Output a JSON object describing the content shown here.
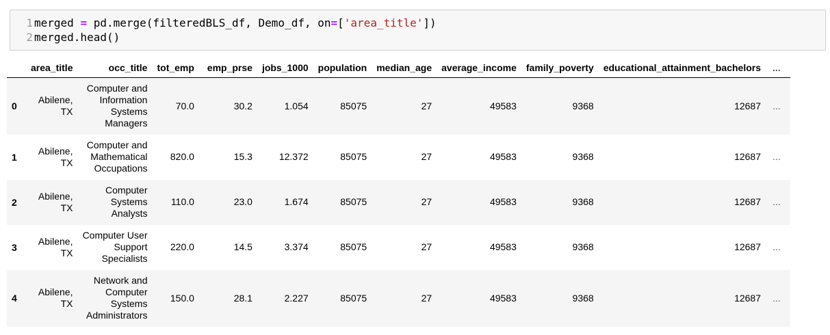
{
  "code_cell": {
    "lines": [
      {
        "number": "1",
        "tokens": [
          {
            "text": "merged ",
            "kind": "plain"
          },
          {
            "text": "=",
            "kind": "op"
          },
          {
            "text": " pd.merge(filteredBLS_df, Demo_df, on",
            "kind": "plain"
          },
          {
            "text": "=",
            "kind": "op"
          },
          {
            "text": "[",
            "kind": "plain"
          },
          {
            "text": "'area_title'",
            "kind": "str"
          },
          {
            "text": "])",
            "kind": "plain"
          }
        ]
      },
      {
        "number": "2",
        "tokens": [
          {
            "text": "merged.head()",
            "kind": "plain"
          }
        ]
      }
    ]
  },
  "dataframe": {
    "columns": [
      "",
      "area_title",
      "occ_title",
      "tot_emp",
      "emp_prse",
      "jobs_1000",
      "population",
      "median_age",
      "average_income",
      "family_poverty",
      "educational_attainment_bachelors",
      "..."
    ],
    "rows": [
      {
        "index": "0",
        "area_title": "Abilene, TX",
        "occ_title": "Computer and Information Systems Managers",
        "tot_emp": "70.0",
        "emp_prse": "30.2",
        "jobs_1000": "1.054",
        "population": "85075",
        "median_age": "27",
        "average_income": "49583",
        "family_poverty": "9368",
        "educational_attainment_bachelors": "12687",
        "more": "..."
      },
      {
        "index": "1",
        "area_title": "Abilene, TX",
        "occ_title": "Computer and Mathematical Occupations",
        "tot_emp": "820.0",
        "emp_prse": "15.3",
        "jobs_1000": "12.372",
        "population": "85075",
        "median_age": "27",
        "average_income": "49583",
        "family_poverty": "9368",
        "educational_attainment_bachelors": "12687",
        "more": "..."
      },
      {
        "index": "2",
        "area_title": "Abilene, TX",
        "occ_title": "Computer Systems Analysts",
        "tot_emp": "110.0",
        "emp_prse": "23.0",
        "jobs_1000": "1.674",
        "population": "85075",
        "median_age": "27",
        "average_income": "49583",
        "family_poverty": "9368",
        "educational_attainment_bachelors": "12687",
        "more": "..."
      },
      {
        "index": "3",
        "area_title": "Abilene, TX",
        "occ_title": "Computer User Support Specialists",
        "tot_emp": "220.0",
        "emp_prse": "14.5",
        "jobs_1000": "3.374",
        "population": "85075",
        "median_age": "27",
        "average_income": "49583",
        "family_poverty": "9368",
        "educational_attainment_bachelors": "12687",
        "more": "..."
      },
      {
        "index": "4",
        "area_title": "Abilene, TX",
        "occ_title": "Network and Computer Systems Administrators",
        "tot_emp": "150.0",
        "emp_prse": "28.1",
        "jobs_1000": "2.227",
        "population": "85075",
        "median_age": "27",
        "average_income": "49583",
        "family_poverty": "9368",
        "educational_attainment_bachelors": "12687",
        "more": "..."
      }
    ]
  }
}
